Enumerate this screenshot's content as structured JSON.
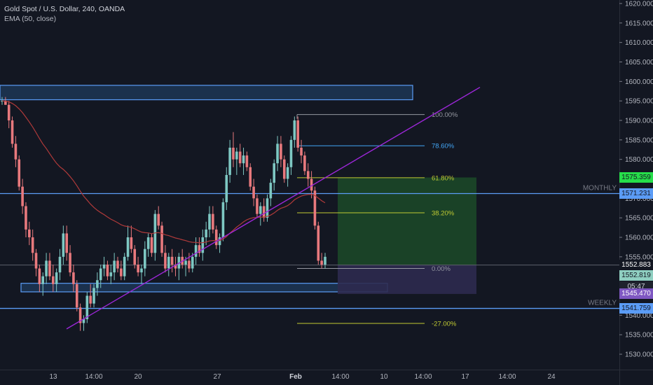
{
  "header": {
    "symbol_line": "Gold Spot / U.S. Dollar, 240, OANDA",
    "indicator_line": "EMA (50, close)"
  },
  "price_axis": {
    "ticks": [
      "1620.000",
      "1615.000",
      "1610.000",
      "1605.000",
      "1600.000",
      "1595.000",
      "1590.000",
      "1585.000",
      "1580.000",
      "1575.000",
      "1570.000",
      "1565.000",
      "1560.000",
      "1555.000",
      "1550.000",
      "1545.000",
      "1540.000",
      "1535.000",
      "1530.000"
    ]
  },
  "time_axis": {
    "ticks": [
      "13",
      "14:00",
      "20",
      "27",
      "Feb",
      "14:00",
      "10",
      "14:00",
      "17",
      "14:00",
      "24"
    ]
  },
  "price_tags": [
    {
      "label": "1575.359",
      "bg": "#26de4a",
      "fg": "#131722"
    },
    {
      "label": "1571.231",
      "bg": "#5b9cf6",
      "fg": "#131722"
    },
    {
      "label": "1552.883",
      "bg": "#131722",
      "fg": "#ffffff"
    },
    {
      "label": "1552.819",
      "bg": "#8fcfc1",
      "fg": "#131722"
    },
    {
      "label": "05:47",
      "bg": "#1e222d",
      "fg": "#d1d4dc"
    },
    {
      "label": "1545.470",
      "bg": "#7e57c2",
      "fg": "#ffffff"
    },
    {
      "label": "1541.759",
      "bg": "#5b9cf6",
      "fg": "#131722"
    }
  ],
  "level_labels": {
    "monthly": "MONTHLY",
    "weekly": "WEEKLY"
  },
  "fibonacci": [
    {
      "label": "100.00%",
      "color": "#9598a1"
    },
    {
      "label": "78.60%",
      "color": "#42a5f5"
    },
    {
      "label": "61.80%",
      "color": "#c0ca33"
    },
    {
      "label": "38.20%",
      "color": "#c0ca33"
    },
    {
      "label": "0.00%",
      "color": "#9598a1"
    },
    {
      "label": "-27.00%",
      "color": "#c0ca33"
    }
  ],
  "colors": {
    "background": "#131722",
    "candle_up": "#7ec8c3",
    "candle_down": "#e8797d",
    "ema": "#b03a3a",
    "trendline": "#9c27d8",
    "zone_border": "#5b9cf6",
    "zone_fill": "#1f3b5c",
    "target_fill": "#1c4a28",
    "stop_fill": "#2e2a4f"
  },
  "chart_data": {
    "type": "candlestick",
    "title": "Gold Spot / U.S. Dollar, 240, OANDA",
    "indicator": "EMA (50, close)",
    "ylim": [
      1528,
      1622
    ],
    "x_ticks": [
      "13",
      "14:00",
      "20",
      "27",
      "Feb",
      "14:00",
      "10",
      "14:00",
      "17",
      "14:00",
      "24"
    ],
    "levels": {
      "monthly": 1571.231,
      "weekly": 1541.759,
      "last": 1552.883,
      "bid": 1552.819,
      "target": 1575.359,
      "stop": 1545.47
    },
    "fib_levels": [
      {
        "ratio": "100.00%",
        "price": 1591.5
      },
      {
        "ratio": "78.60%",
        "price": 1583.5
      },
      {
        "ratio": "61.80%",
        "price": 1575.3
      },
      {
        "ratio": "38.20%",
        "price": 1566.3
      },
      {
        "ratio": "0.00%",
        "price": 1552.0
      },
      {
        "ratio": "-27.00%",
        "price": 1537.9
      }
    ],
    "zones": [
      {
        "from": 1595.3,
        "to": 1599.0
      },
      {
        "from": 1546.0,
        "to": 1548.2
      }
    ],
    "trendline": {
      "from_price": 1536.5,
      "to_price": 1598.5
    },
    "candles": [
      [
        1595,
        1596,
        1594,
        1595
      ],
      [
        1595,
        1596,
        1594,
        1594
      ],
      [
        1594,
        1595,
        1588,
        1590
      ],
      [
        1590,
        1591,
        1583,
        1584
      ],
      [
        1584,
        1586,
        1578,
        1580
      ],
      [
        1580,
        1581,
        1572,
        1573
      ],
      [
        1573,
        1575,
        1566,
        1568
      ],
      [
        1568,
        1569,
        1560,
        1562
      ],
      [
        1562,
        1564,
        1558,
        1560
      ],
      [
        1560,
        1562,
        1554,
        1556
      ],
      [
        1556,
        1557,
        1550,
        1552
      ],
      [
        1552,
        1553,
        1546,
        1548
      ],
      [
        1548,
        1551,
        1545,
        1550
      ],
      [
        1550,
        1556,
        1548,
        1554
      ],
      [
        1554,
        1556,
        1549,
        1550
      ],
      [
        1550,
        1553,
        1546,
        1548
      ],
      [
        1548,
        1552,
        1546,
        1551
      ],
      [
        1551,
        1557,
        1549,
        1555
      ],
      [
        1555,
        1563,
        1553,
        1561
      ],
      [
        1561,
        1563,
        1554,
        1556
      ],
      [
        1556,
        1558,
        1550,
        1551
      ],
      [
        1551,
        1553,
        1546,
        1548
      ],
      [
        1548,
        1549,
        1541,
        1542
      ],
      [
        1542,
        1543,
        1536,
        1538
      ],
      [
        1538,
        1540,
        1536,
        1539
      ],
      [
        1539,
        1546,
        1538,
        1545
      ],
      [
        1545,
        1548,
        1542,
        1543
      ],
      [
        1543,
        1548,
        1542,
        1547
      ],
      [
        1547,
        1551,
        1545,
        1549
      ],
      [
        1549,
        1553,
        1547,
        1552
      ],
      [
        1552,
        1555,
        1550,
        1553
      ],
      [
        1553,
        1554,
        1549,
        1550
      ],
      [
        1550,
        1553,
        1548,
        1551
      ],
      [
        1551,
        1556,
        1549,
        1554
      ],
      [
        1554,
        1555,
        1551,
        1552
      ],
      [
        1552,
        1554,
        1549,
        1550
      ],
      [
        1550,
        1556,
        1549,
        1555
      ],
      [
        1555,
        1563,
        1554,
        1560
      ],
      [
        1560,
        1563,
        1556,
        1557
      ],
      [
        1557,
        1558,
        1552,
        1553
      ],
      [
        1553,
        1555,
        1550,
        1551
      ],
      [
        1551,
        1553,
        1548,
        1552
      ],
      [
        1552,
        1559,
        1550,
        1557
      ],
      [
        1557,
        1561,
        1555,
        1560
      ],
      [
        1560,
        1561,
        1555,
        1556
      ],
      [
        1556,
        1567,
        1554,
        1566
      ],
      [
        1566,
        1568,
        1562,
        1563
      ],
      [
        1563,
        1564,
        1555,
        1556
      ],
      [
        1556,
        1558,
        1551,
        1552
      ],
      [
        1552,
        1556,
        1550,
        1555
      ],
      [
        1555,
        1557,
        1551,
        1553
      ],
      [
        1553,
        1555,
        1550,
        1552
      ],
      [
        1552,
        1556,
        1549,
        1555
      ],
      [
        1555,
        1557,
        1552,
        1553
      ],
      [
        1553,
        1555,
        1550,
        1554
      ],
      [
        1554,
        1556,
        1551,
        1552
      ],
      [
        1552,
        1556,
        1551,
        1555
      ],
      [
        1555,
        1560,
        1553,
        1558
      ],
      [
        1558,
        1560,
        1555,
        1556
      ],
      [
        1556,
        1562,
        1554,
        1560
      ],
      [
        1560,
        1564,
        1558,
        1562
      ],
      [
        1562,
        1568,
        1560,
        1566
      ],
      [
        1566,
        1568,
        1561,
        1562
      ],
      [
        1562,
        1563,
        1557,
        1558
      ],
      [
        1558,
        1561,
        1556,
        1560
      ],
      [
        1560,
        1570,
        1559,
        1569
      ],
      [
        1569,
        1578,
        1567,
        1576
      ],
      [
        1576,
        1585,
        1574,
        1583
      ],
      [
        1583,
        1587,
        1578,
        1580
      ],
      [
        1580,
        1583,
        1576,
        1582
      ],
      [
        1582,
        1584,
        1578,
        1579
      ],
      [
        1579,
        1583,
        1576,
        1581
      ],
      [
        1581,
        1582,
        1577,
        1578
      ],
      [
        1578,
        1579,
        1572,
        1573
      ],
      [
        1573,
        1575,
        1568,
        1570
      ],
      [
        1570,
        1571,
        1565,
        1566
      ],
      [
        1566,
        1569,
        1563,
        1568
      ],
      [
        1568,
        1570,
        1564,
        1565
      ],
      [
        1565,
        1571,
        1564,
        1570
      ],
      [
        1570,
        1575,
        1568,
        1574
      ],
      [
        1574,
        1580,
        1572,
        1579
      ],
      [
        1579,
        1586,
        1577,
        1584
      ],
      [
        1584,
        1586,
        1578,
        1580
      ],
      [
        1580,
        1581,
        1574,
        1575
      ],
      [
        1575,
        1579,
        1573,
        1578
      ],
      [
        1578,
        1586,
        1576,
        1585
      ],
      [
        1585,
        1591,
        1583,
        1590
      ],
      [
        1590,
        1591,
        1582,
        1583
      ],
      [
        1583,
        1585,
        1579,
        1581
      ],
      [
        1581,
        1582,
        1576,
        1577
      ],
      [
        1577,
        1579,
        1573,
        1575
      ],
      [
        1575,
        1577,
        1570,
        1572
      ],
      [
        1572,
        1573,
        1562,
        1563
      ],
      [
        1563,
        1564,
        1553,
        1554
      ],
      [
        1554,
        1556,
        1552,
        1553
      ],
      [
        1553,
        1556,
        1552,
        1555
      ]
    ]
  }
}
